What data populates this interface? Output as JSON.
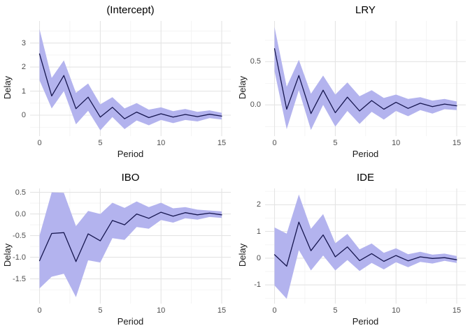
{
  "style": {
    "background": "#ffffff",
    "ribbon_color": "#b3b3ee",
    "line_color": "#16164f",
    "grid_major_color": "#e4e4e4",
    "grid_minor_color": "#f0f0f0",
    "tick_label_color": "#4d4d4d",
    "axis_title_color": "#1a1a1a",
    "title_color": "#000000"
  },
  "chart_data": [
    {
      "id": "intercept",
      "type": "line",
      "title": "(Intercept)",
      "xlabel": "Period",
      "ylabel": "Delay",
      "legend": "none",
      "grid": true,
      "x": [
        0,
        1,
        2,
        3,
        4,
        5,
        6,
        7,
        8,
        9,
        10,
        11,
        12,
        13,
        14,
        15
      ],
      "series": [
        {
          "name": "delay",
          "values": [
            2.55,
            0.8,
            1.65,
            0.27,
            0.75,
            -0.08,
            0.33,
            -0.15,
            0.13,
            -0.1,
            0.06,
            -0.08,
            0.03,
            -0.06,
            0.04,
            -0.04
          ]
        }
      ],
      "ribbon": {
        "upper": [
          3.58,
          1.55,
          2.28,
          0.93,
          1.32,
          0.45,
          0.75,
          0.28,
          0.5,
          0.23,
          0.33,
          0.17,
          0.26,
          0.14,
          0.2,
          0.1
        ],
        "lower": [
          1.45,
          0.28,
          1.0,
          -0.38,
          0.18,
          -0.63,
          -0.08,
          -0.58,
          -0.22,
          -0.42,
          -0.2,
          -0.33,
          -0.2,
          -0.26,
          -0.12,
          -0.18
        ]
      },
      "xlim": [
        -0.78,
        15.75
      ],
      "ylim": [
        -0.87,
        3.92
      ],
      "xticks": {
        "values": [
          0,
          5,
          10,
          15
        ],
        "labels": [
          "0",
          "5",
          "10",
          "15"
        ]
      },
      "yticks": {
        "values": [
          0,
          1,
          2,
          3
        ],
        "labels": [
          "0",
          "1",
          "2",
          "3"
        ]
      }
    },
    {
      "id": "lry",
      "type": "line",
      "title": "LRY",
      "xlabel": "Period",
      "ylabel": "Delay",
      "legend": "none",
      "grid": true,
      "x": [
        0,
        1,
        2,
        3,
        4,
        5,
        6,
        7,
        8,
        9,
        10,
        11,
        12,
        13,
        14,
        15
      ],
      "series": [
        {
          "name": "delay",
          "values": [
            0.65,
            -0.05,
            0.34,
            -0.1,
            0.17,
            -0.09,
            0.09,
            -0.07,
            0.05,
            -0.05,
            0.03,
            -0.04,
            0.02,
            -0.02,
            0.01,
            -0.01
          ]
        }
      ],
      "ribbon": {
        "upper": [
          0.9,
          0.21,
          0.52,
          0.13,
          0.34,
          0.12,
          0.26,
          0.1,
          0.17,
          0.08,
          0.12,
          0.07,
          0.09,
          0.05,
          0.07,
          0.04
        ],
        "lower": [
          0.39,
          -0.28,
          0.17,
          -0.29,
          0.0,
          -0.25,
          -0.07,
          -0.22,
          -0.08,
          -0.17,
          -0.07,
          -0.13,
          -0.06,
          -0.1,
          -0.05,
          -0.06
        ]
      },
      "xlim": [
        -0.78,
        15.75
      ],
      "ylim": [
        -0.36,
        0.97
      ],
      "xticks": {
        "values": [
          0,
          5,
          10,
          15
        ],
        "labels": [
          "0",
          "5",
          "10",
          "15"
        ]
      },
      "yticks": {
        "values": [
          0,
          0.5
        ],
        "labels": [
          "0.0",
          "0.5"
        ]
      }
    },
    {
      "id": "ibo",
      "type": "line",
      "title": "IBO",
      "xlabel": "Period",
      "ylabel": "Delay",
      "legend": "none",
      "grid": true,
      "x": [
        0,
        1,
        2,
        3,
        4,
        5,
        6,
        7,
        8,
        9,
        10,
        11,
        12,
        13,
        14,
        15
      ],
      "series": [
        {
          "name": "delay",
          "values": [
            -1.08,
            -0.45,
            -0.43,
            -1.1,
            -0.46,
            -0.62,
            -0.15,
            -0.25,
            0.0,
            -0.1,
            0.04,
            -0.05,
            0.03,
            -0.02,
            0.02,
            -0.02
          ]
        }
      ],
      "ribbon": {
        "upper": [
          -0.5,
          0.5,
          0.49,
          -0.28,
          0.07,
          0.0,
          0.26,
          0.14,
          0.29,
          0.16,
          0.26,
          0.13,
          0.16,
          0.1,
          0.08,
          0.06
        ],
        "lower": [
          -1.72,
          -1.45,
          -1.38,
          -1.92,
          -1.07,
          -1.12,
          -0.56,
          -0.6,
          -0.3,
          -0.34,
          -0.14,
          -0.2,
          -0.1,
          -0.13,
          -0.07,
          -0.09
        ]
      },
      "xlim": [
        -0.78,
        15.75
      ],
      "ylim": [
        -2.07,
        0.59
      ],
      "xticks": {
        "values": [
          0,
          5,
          10,
          15
        ],
        "labels": [
          "0",
          "5",
          "10",
          "15"
        ]
      },
      "yticks": {
        "values": [
          -1.5,
          -1.0,
          -0.5,
          0,
          0.5
        ],
        "labels": [
          "-1.5",
          "-1.0",
          "-0.5",
          "0.0",
          "0.5"
        ]
      }
    },
    {
      "id": "ide",
      "type": "line",
      "title": "IDE",
      "xlabel": "Period",
      "ylabel": "Delay",
      "legend": "none",
      "grid": true,
      "x": [
        0,
        1,
        2,
        3,
        4,
        5,
        6,
        7,
        8,
        9,
        10,
        11,
        12,
        13,
        14,
        15
      ],
      "series": [
        {
          "name": "delay",
          "values": [
            0.13,
            -0.3,
            1.35,
            0.28,
            0.87,
            0.05,
            0.42,
            -0.09,
            0.17,
            -0.12,
            0.1,
            -0.1,
            0.05,
            -0.01,
            0.02,
            -0.06
          ]
        }
      ],
      "ribbon": {
        "upper": [
          1.15,
          0.92,
          2.38,
          1.1,
          1.65,
          0.56,
          0.91,
          0.33,
          0.55,
          0.2,
          0.37,
          0.15,
          0.24,
          0.13,
          0.17,
          0.08
        ],
        "lower": [
          -1.02,
          -1.52,
          0.3,
          -0.46,
          0.1,
          -0.46,
          -0.07,
          -0.48,
          -0.18,
          -0.42,
          -0.15,
          -0.34,
          -0.14,
          -0.2,
          -0.1,
          -0.18
        ]
      },
      "xlim": [
        -0.78,
        15.75
      ],
      "ylim": [
        -1.7,
        2.61
      ],
      "xticks": {
        "values": [
          0,
          5,
          10,
          15
        ],
        "labels": [
          "0",
          "5",
          "10",
          "15"
        ]
      },
      "yticks": {
        "values": [
          -1,
          0,
          1,
          2
        ],
        "labels": [
          "-1",
          "0",
          "1",
          "2"
        ]
      }
    }
  ]
}
